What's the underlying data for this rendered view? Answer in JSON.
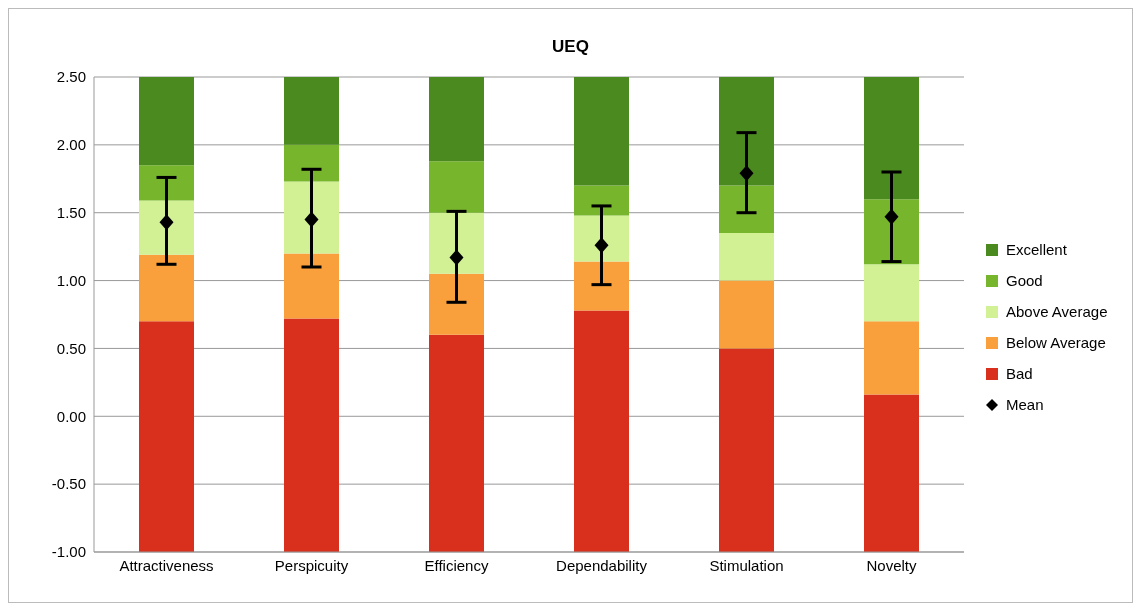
{
  "chart_data": {
    "type": "bar",
    "title": "UEQ",
    "categories": [
      "Attractiveness",
      "Perspicuity",
      "Efficiency",
      "Dependability",
      "Stimulation",
      "Novelty"
    ],
    "series": [
      {
        "name": "Bad",
        "color": "#d9301e",
        "base": [
          -1,
          -1,
          -1,
          -1,
          -1,
          -1
        ],
        "values": [
          1.7,
          1.72,
          1.6,
          1.78,
          1.5,
          1.16
        ]
      },
      {
        "name": "Below Average",
        "color": "#f9a03c",
        "base": [
          0.7,
          0.72,
          0.6,
          0.78,
          0.5,
          0.16
        ],
        "values": [
          0.49,
          0.48,
          0.45,
          0.36,
          0.5,
          0.54
        ]
      },
      {
        "name": "Above Average",
        "color": "#d2f194",
        "base": [
          1.19,
          1.2,
          1.05,
          1.14,
          1.0,
          0.7
        ],
        "values": [
          0.4,
          0.53,
          0.45,
          0.34,
          0.35,
          0.42
        ]
      },
      {
        "name": "Good",
        "color": "#77b52c",
        "base": [
          1.59,
          1.73,
          1.5,
          1.48,
          1.35,
          1.12
        ],
        "values": [
          0.26,
          0.27,
          0.38,
          0.22,
          0.35,
          0.48
        ]
      },
      {
        "name": "Excellent",
        "color": "#4b8a1f",
        "base": [
          1.85,
          2.0,
          1.88,
          1.7,
          1.7,
          1.6
        ],
        "values": [
          0.65,
          0.5,
          0.62,
          0.8,
          0.8,
          0.9
        ]
      },
      {
        "name": "Mean",
        "type": "scatter",
        "color": "#000000",
        "marker": "diamond",
        "x": [
          "Attractiveness",
          "Perspicuity",
          "Efficiency",
          "Dependability",
          "Stimulation",
          "Novelty"
        ],
        "values": [
          1.43,
          1.45,
          1.17,
          1.26,
          1.79,
          1.47
        ],
        "errors": [
          [
            1.12,
            1.76
          ],
          [
            1.1,
            1.82
          ],
          [
            0.84,
            1.51
          ],
          [
            0.97,
            1.55
          ],
          [
            1.5,
            2.09
          ],
          [
            1.14,
            1.8
          ]
        ]
      }
    ],
    "ylim": [
      -1,
      2.5
    ],
    "yticks": [
      {
        "value": -1,
        "label": "-1.00"
      },
      {
        "value": -0.5,
        "label": "-0.50"
      },
      {
        "value": 0,
        "label": "0.00"
      },
      {
        "value": 0.5,
        "label": "0.50"
      },
      {
        "value": 1,
        "label": "1.00"
      },
      {
        "value": 1.5,
        "label": "1.50"
      },
      {
        "value": 2,
        "label": "2.00"
      },
      {
        "value": 2.5,
        "label": "2.50"
      }
    ],
    "grid": "y",
    "legend": "right"
  }
}
